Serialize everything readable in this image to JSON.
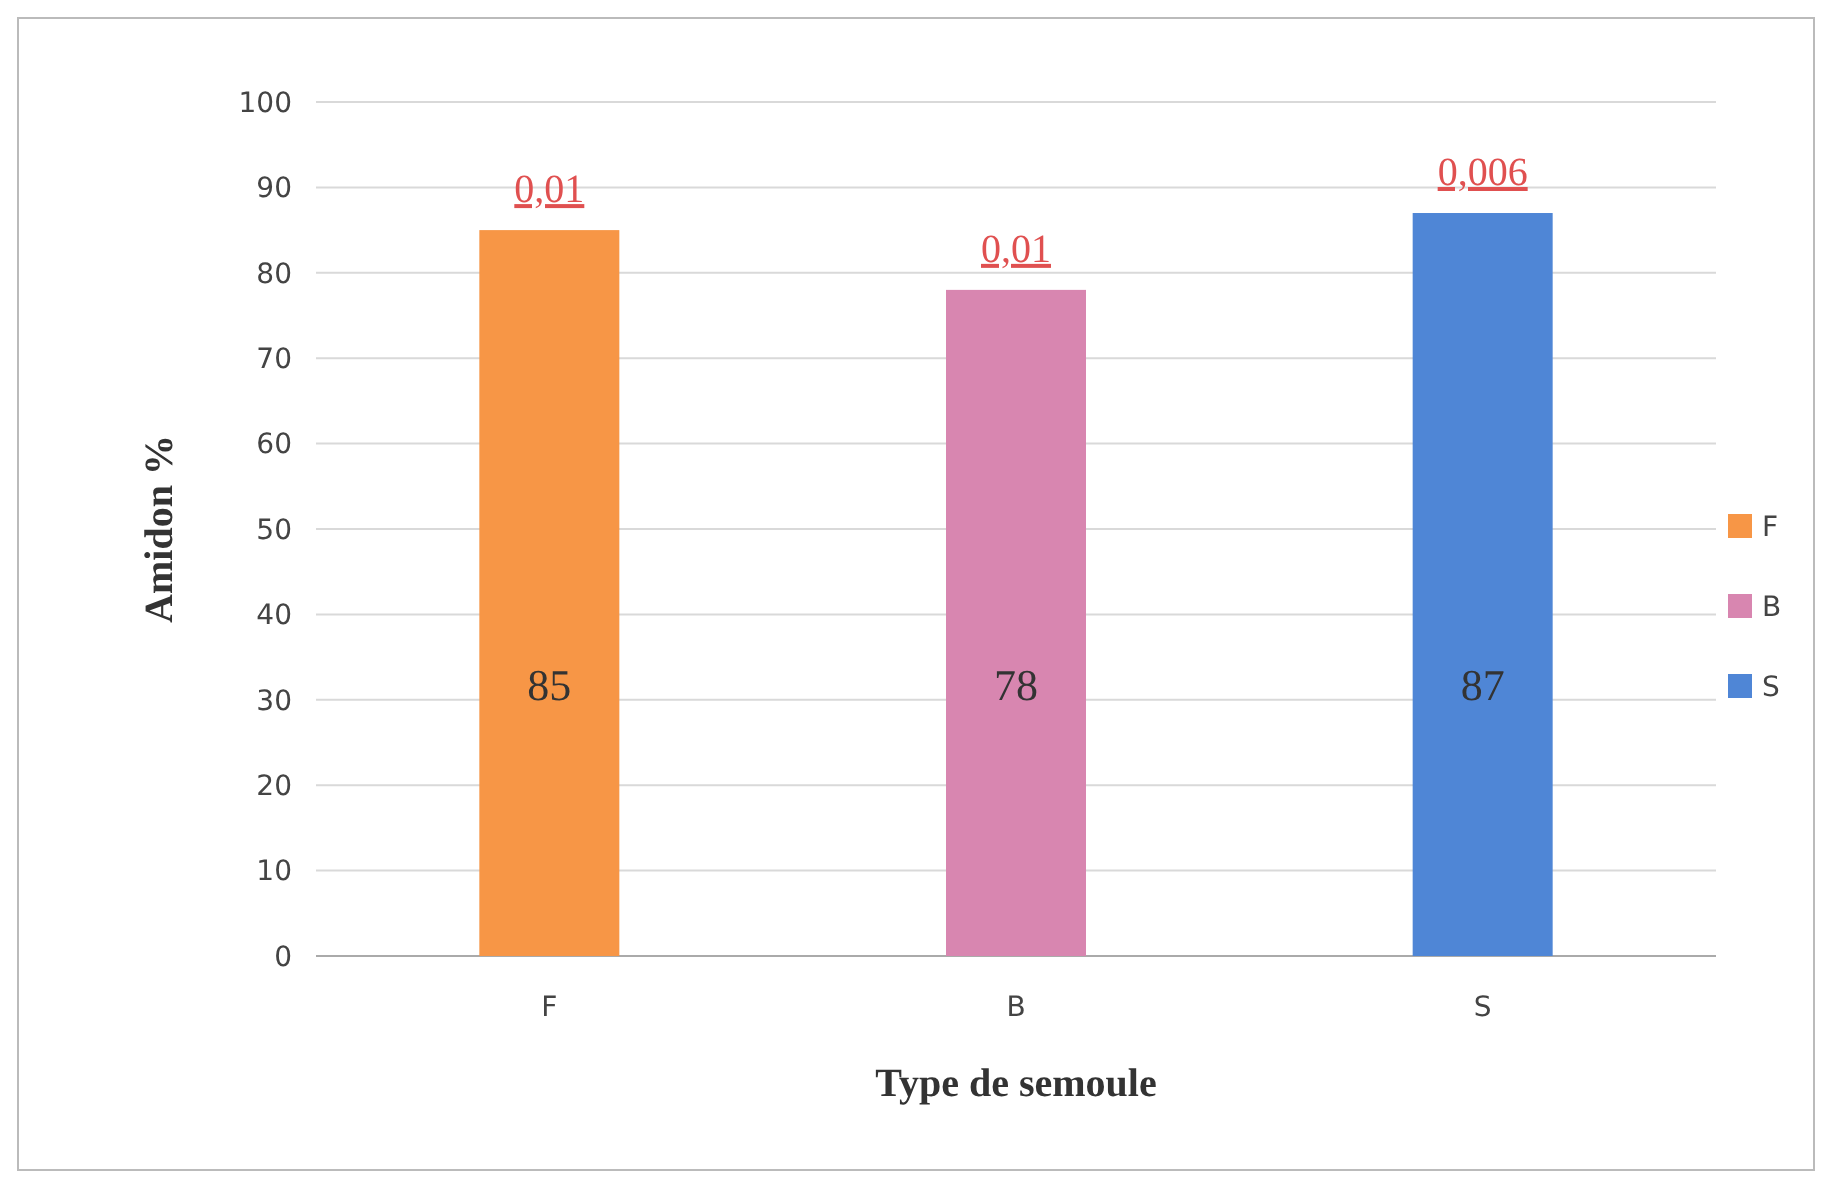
{
  "chart_data": {
    "type": "bar",
    "xlabel": "Type de semoule",
    "ylabel": "Amidon %",
    "categories": [
      "F",
      "B",
      "S"
    ],
    "stacked": true,
    "series": [
      {
        "name": "F",
        "color": "#f79646",
        "values": [
          85,
          null,
          null
        ]
      },
      {
        "name": "B",
        "color": "#d886b0",
        "values": [
          null,
          78,
          null
        ]
      },
      {
        "name": "S",
        "color": "#4f86d6",
        "values": [
          null,
          null,
          87
        ]
      }
    ],
    "ylim": [
      0,
      100
    ],
    "yticks": [
      0,
      10,
      20,
      30,
      40,
      50,
      60,
      70,
      80,
      90,
      100
    ],
    "grid": "y",
    "legend": "right",
    "data_labels": true,
    "annotations": [
      {
        "text": "0,01",
        "x": "F",
        "y": 85
      },
      {
        "text": "0,01",
        "x": "B",
        "y": 78
      },
      {
        "text": "0,006",
        "x": "S",
        "y": 87
      }
    ]
  }
}
